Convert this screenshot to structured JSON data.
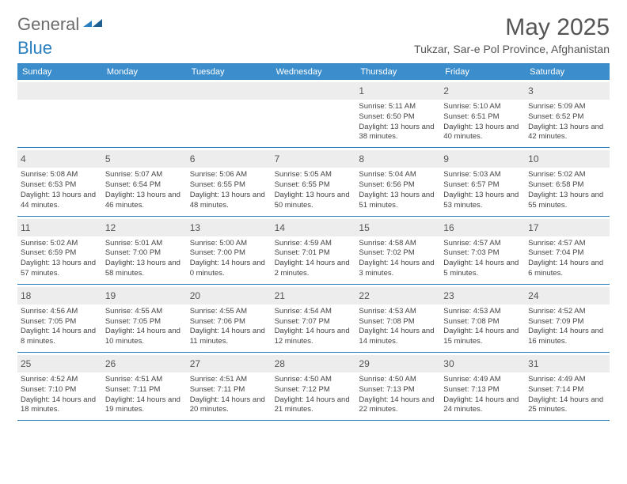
{
  "logo": {
    "general": "General",
    "blue": "Blue"
  },
  "title": "May 2025",
  "location": "Tukzar, Sar-e Pol Province, Afghanistan",
  "colors": {
    "header_bg": "#3c8dcc",
    "border": "#2a7fbf",
    "daynum_bg": "#ededed",
    "text": "#444444",
    "title_text": "#555555"
  },
  "weekdays": [
    "Sunday",
    "Monday",
    "Tuesday",
    "Wednesday",
    "Thursday",
    "Friday",
    "Saturday"
  ],
  "weeks": [
    [
      null,
      null,
      null,
      null,
      {
        "n": "1",
        "sr": "5:11 AM",
        "ss": "6:50 PM",
        "dl": "13 hours and 38 minutes."
      },
      {
        "n": "2",
        "sr": "5:10 AM",
        "ss": "6:51 PM",
        "dl": "13 hours and 40 minutes."
      },
      {
        "n": "3",
        "sr": "5:09 AM",
        "ss": "6:52 PM",
        "dl": "13 hours and 42 minutes."
      }
    ],
    [
      {
        "n": "4",
        "sr": "5:08 AM",
        "ss": "6:53 PM",
        "dl": "13 hours and 44 minutes."
      },
      {
        "n": "5",
        "sr": "5:07 AM",
        "ss": "6:54 PM",
        "dl": "13 hours and 46 minutes."
      },
      {
        "n": "6",
        "sr": "5:06 AM",
        "ss": "6:55 PM",
        "dl": "13 hours and 48 minutes."
      },
      {
        "n": "7",
        "sr": "5:05 AM",
        "ss": "6:55 PM",
        "dl": "13 hours and 50 minutes."
      },
      {
        "n": "8",
        "sr": "5:04 AM",
        "ss": "6:56 PM",
        "dl": "13 hours and 51 minutes."
      },
      {
        "n": "9",
        "sr": "5:03 AM",
        "ss": "6:57 PM",
        "dl": "13 hours and 53 minutes."
      },
      {
        "n": "10",
        "sr": "5:02 AM",
        "ss": "6:58 PM",
        "dl": "13 hours and 55 minutes."
      }
    ],
    [
      {
        "n": "11",
        "sr": "5:02 AM",
        "ss": "6:59 PM",
        "dl": "13 hours and 57 minutes."
      },
      {
        "n": "12",
        "sr": "5:01 AM",
        "ss": "7:00 PM",
        "dl": "13 hours and 58 minutes."
      },
      {
        "n": "13",
        "sr": "5:00 AM",
        "ss": "7:00 PM",
        "dl": "14 hours and 0 minutes."
      },
      {
        "n": "14",
        "sr": "4:59 AM",
        "ss": "7:01 PM",
        "dl": "14 hours and 2 minutes."
      },
      {
        "n": "15",
        "sr": "4:58 AM",
        "ss": "7:02 PM",
        "dl": "14 hours and 3 minutes."
      },
      {
        "n": "16",
        "sr": "4:57 AM",
        "ss": "7:03 PM",
        "dl": "14 hours and 5 minutes."
      },
      {
        "n": "17",
        "sr": "4:57 AM",
        "ss": "7:04 PM",
        "dl": "14 hours and 6 minutes."
      }
    ],
    [
      {
        "n": "18",
        "sr": "4:56 AM",
        "ss": "7:05 PM",
        "dl": "14 hours and 8 minutes."
      },
      {
        "n": "19",
        "sr": "4:55 AM",
        "ss": "7:05 PM",
        "dl": "14 hours and 10 minutes."
      },
      {
        "n": "20",
        "sr": "4:55 AM",
        "ss": "7:06 PM",
        "dl": "14 hours and 11 minutes."
      },
      {
        "n": "21",
        "sr": "4:54 AM",
        "ss": "7:07 PM",
        "dl": "14 hours and 12 minutes."
      },
      {
        "n": "22",
        "sr": "4:53 AM",
        "ss": "7:08 PM",
        "dl": "14 hours and 14 minutes."
      },
      {
        "n": "23",
        "sr": "4:53 AM",
        "ss": "7:08 PM",
        "dl": "14 hours and 15 minutes."
      },
      {
        "n": "24",
        "sr": "4:52 AM",
        "ss": "7:09 PM",
        "dl": "14 hours and 16 minutes."
      }
    ],
    [
      {
        "n": "25",
        "sr": "4:52 AM",
        "ss": "7:10 PM",
        "dl": "14 hours and 18 minutes."
      },
      {
        "n": "26",
        "sr": "4:51 AM",
        "ss": "7:11 PM",
        "dl": "14 hours and 19 minutes."
      },
      {
        "n": "27",
        "sr": "4:51 AM",
        "ss": "7:11 PM",
        "dl": "14 hours and 20 minutes."
      },
      {
        "n": "28",
        "sr": "4:50 AM",
        "ss": "7:12 PM",
        "dl": "14 hours and 21 minutes."
      },
      {
        "n": "29",
        "sr": "4:50 AM",
        "ss": "7:13 PM",
        "dl": "14 hours and 22 minutes."
      },
      {
        "n": "30",
        "sr": "4:49 AM",
        "ss": "7:13 PM",
        "dl": "14 hours and 24 minutes."
      },
      {
        "n": "31",
        "sr": "4:49 AM",
        "ss": "7:14 PM",
        "dl": "14 hours and 25 minutes."
      }
    ]
  ],
  "labels": {
    "sunrise": "Sunrise:",
    "sunset": "Sunset:",
    "daylight": "Daylight:"
  }
}
